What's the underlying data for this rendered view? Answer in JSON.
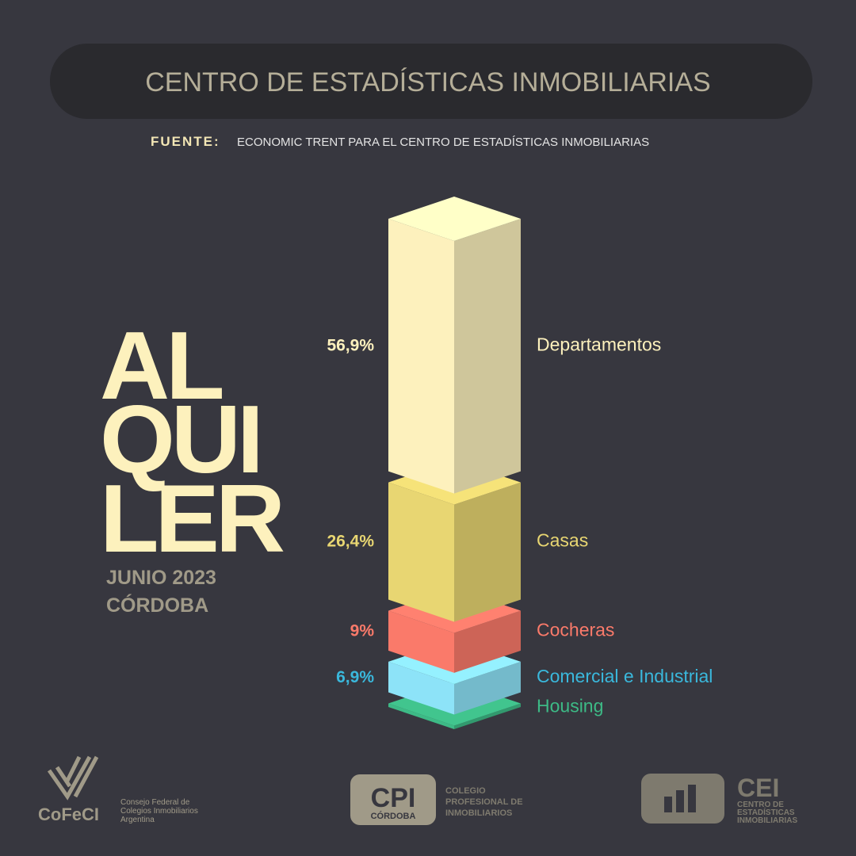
{
  "header": {
    "title": "CENTRO DE ESTADÍSTICAS INMOBILIARIAS",
    "source_label": "FUENTE:",
    "source": "ECONOMIC TRENT PARA EL CENTRO DE ESTADÍSTICAS INMOBILIARIAS"
  },
  "chart_data": {
    "type": "isometric-stack",
    "title_lines": [
      "AL",
      "QUI",
      "LER"
    ],
    "subtitle_lines": [
      "JUNIO 2023",
      "CÓRDOBA"
    ],
    "categories": [
      "Departamentos",
      "Casas",
      "Cocheras",
      "Comercial e Industrial",
      "Housing"
    ],
    "values": [
      56.9,
      26.4,
      9,
      6.9,
      0.8
    ],
    "value_labels": [
      "56,9%",
      "26,4%",
      "9%",
      "6,9%",
      null
    ],
    "colors": [
      "#fdf1bd",
      "#e8d672",
      "#fa7a6a",
      "#8de3f8",
      "#3dba86"
    ],
    "label_colors": [
      "#fdf1bd",
      "#e8d672",
      "#fa7a6a",
      "#3ab8dc",
      "#3dba86"
    ]
  },
  "logos": {
    "cofeci": {
      "name": "CoFeCI",
      "lines": [
        "Consejo Federal de",
        "Colegios Inmobiliarios",
        "Argentina"
      ]
    },
    "cpi": {
      "name": "CPI",
      "city": "CÓRDOBA",
      "lines": [
        "COLEGIO",
        "PROFESIONAL DE",
        "INMOBILIARIOS"
      ]
    },
    "cei": {
      "name": "CEI",
      "lines": [
        "CENTRO DE",
        "ESTADÍSTICAS",
        "INMOBILIARIAS"
      ]
    }
  }
}
